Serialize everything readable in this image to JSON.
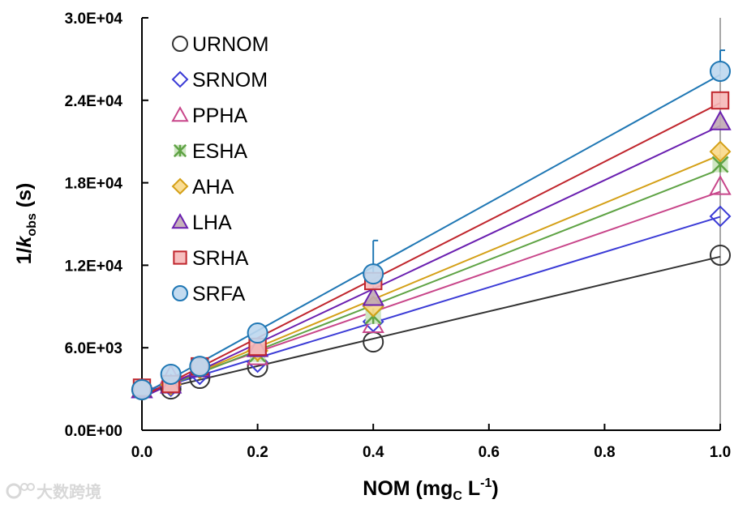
{
  "chart_data": {
    "type": "scatter",
    "xlabel": {
      "main": "NOM (mg",
      "sub": "C",
      "mid": " L",
      "sup": "-1",
      "end": ")"
    },
    "ylabel": {
      "pre": "1/",
      "italic": "k",
      "sub": "obs",
      "end": " (s)"
    },
    "xlim": [
      0,
      1.0
    ],
    "ylim": [
      0,
      30000
    ],
    "xticks": [
      "0.0",
      "0.2",
      "0.4",
      "0.6",
      "0.8",
      "1.0"
    ],
    "xtick_values": [
      0,
      0.2,
      0.4,
      0.6,
      0.8,
      1.0
    ],
    "yticks": [
      "0.0E+00",
      "6.0E+03",
      "1.2E+04",
      "1.8E+04",
      "2.4E+04",
      "3.0E+04"
    ],
    "ytick_values": [
      0,
      6000,
      12000,
      18000,
      24000,
      30000
    ],
    "legend_position": "top-left",
    "grid": false,
    "x": [
      0,
      0.05,
      0.1,
      0.2,
      0.4,
      1.0
    ],
    "series": [
      {
        "name": "URNOM",
        "marker": "circle-open",
        "color": "#333333",
        "fill": "none",
        "values": [
          2950,
          3000,
          3770,
          4600,
          6420,
          12730
        ]
      },
      {
        "name": "SRNOM",
        "marker": "diamond-open",
        "color": "#3b3bd6",
        "fill": "none",
        "values": [
          2950,
          3200,
          4070,
          4950,
          7900,
          15560
        ]
      },
      {
        "name": "PPHA",
        "marker": "triangle-open",
        "color": "#c8468a",
        "fill": "none",
        "values": [
          2950,
          4000,
          4480,
          5360,
          7700,
          17740
        ]
      },
      {
        "name": "ESHA",
        "marker": "asterisk",
        "color": "#5fa345",
        "fill": "#cfe6c3",
        "values": [
          2950,
          3300,
          4480,
          5540,
          8300,
          19330
        ]
      },
      {
        "name": "AHA",
        "marker": "diamond",
        "color": "#d4a017",
        "fill": "#fad98a",
        "values": [
          2950,
          3300,
          4480,
          5780,
          9000,
          20270
        ]
      },
      {
        "name": "LHA",
        "marker": "triangle",
        "color": "#6a1fb0",
        "fill": "#c0a9b4",
        "values": [
          2950,
          3300,
          4480,
          5950,
          9670,
          22450
        ]
      },
      {
        "name": "SRHA",
        "marker": "square",
        "color": "#c0262d",
        "fill": "#f6b8b8",
        "values": [
          3100,
          3360,
          4650,
          6070,
          10850,
          23990
        ]
      },
      {
        "name": "SRFA",
        "marker": "circle",
        "color": "#1f77b4",
        "fill": "#bdd7ee",
        "values": [
          2950,
          4070,
          4650,
          7070,
          11370,
          26110
        ]
      }
    ],
    "error_bars": [
      {
        "series": "SRFA",
        "x": 0.4,
        "upper": 13800
      },
      {
        "series": "SRFA",
        "x": 1.0,
        "upper": 27640
      }
    ]
  },
  "watermark": "大数跨境"
}
